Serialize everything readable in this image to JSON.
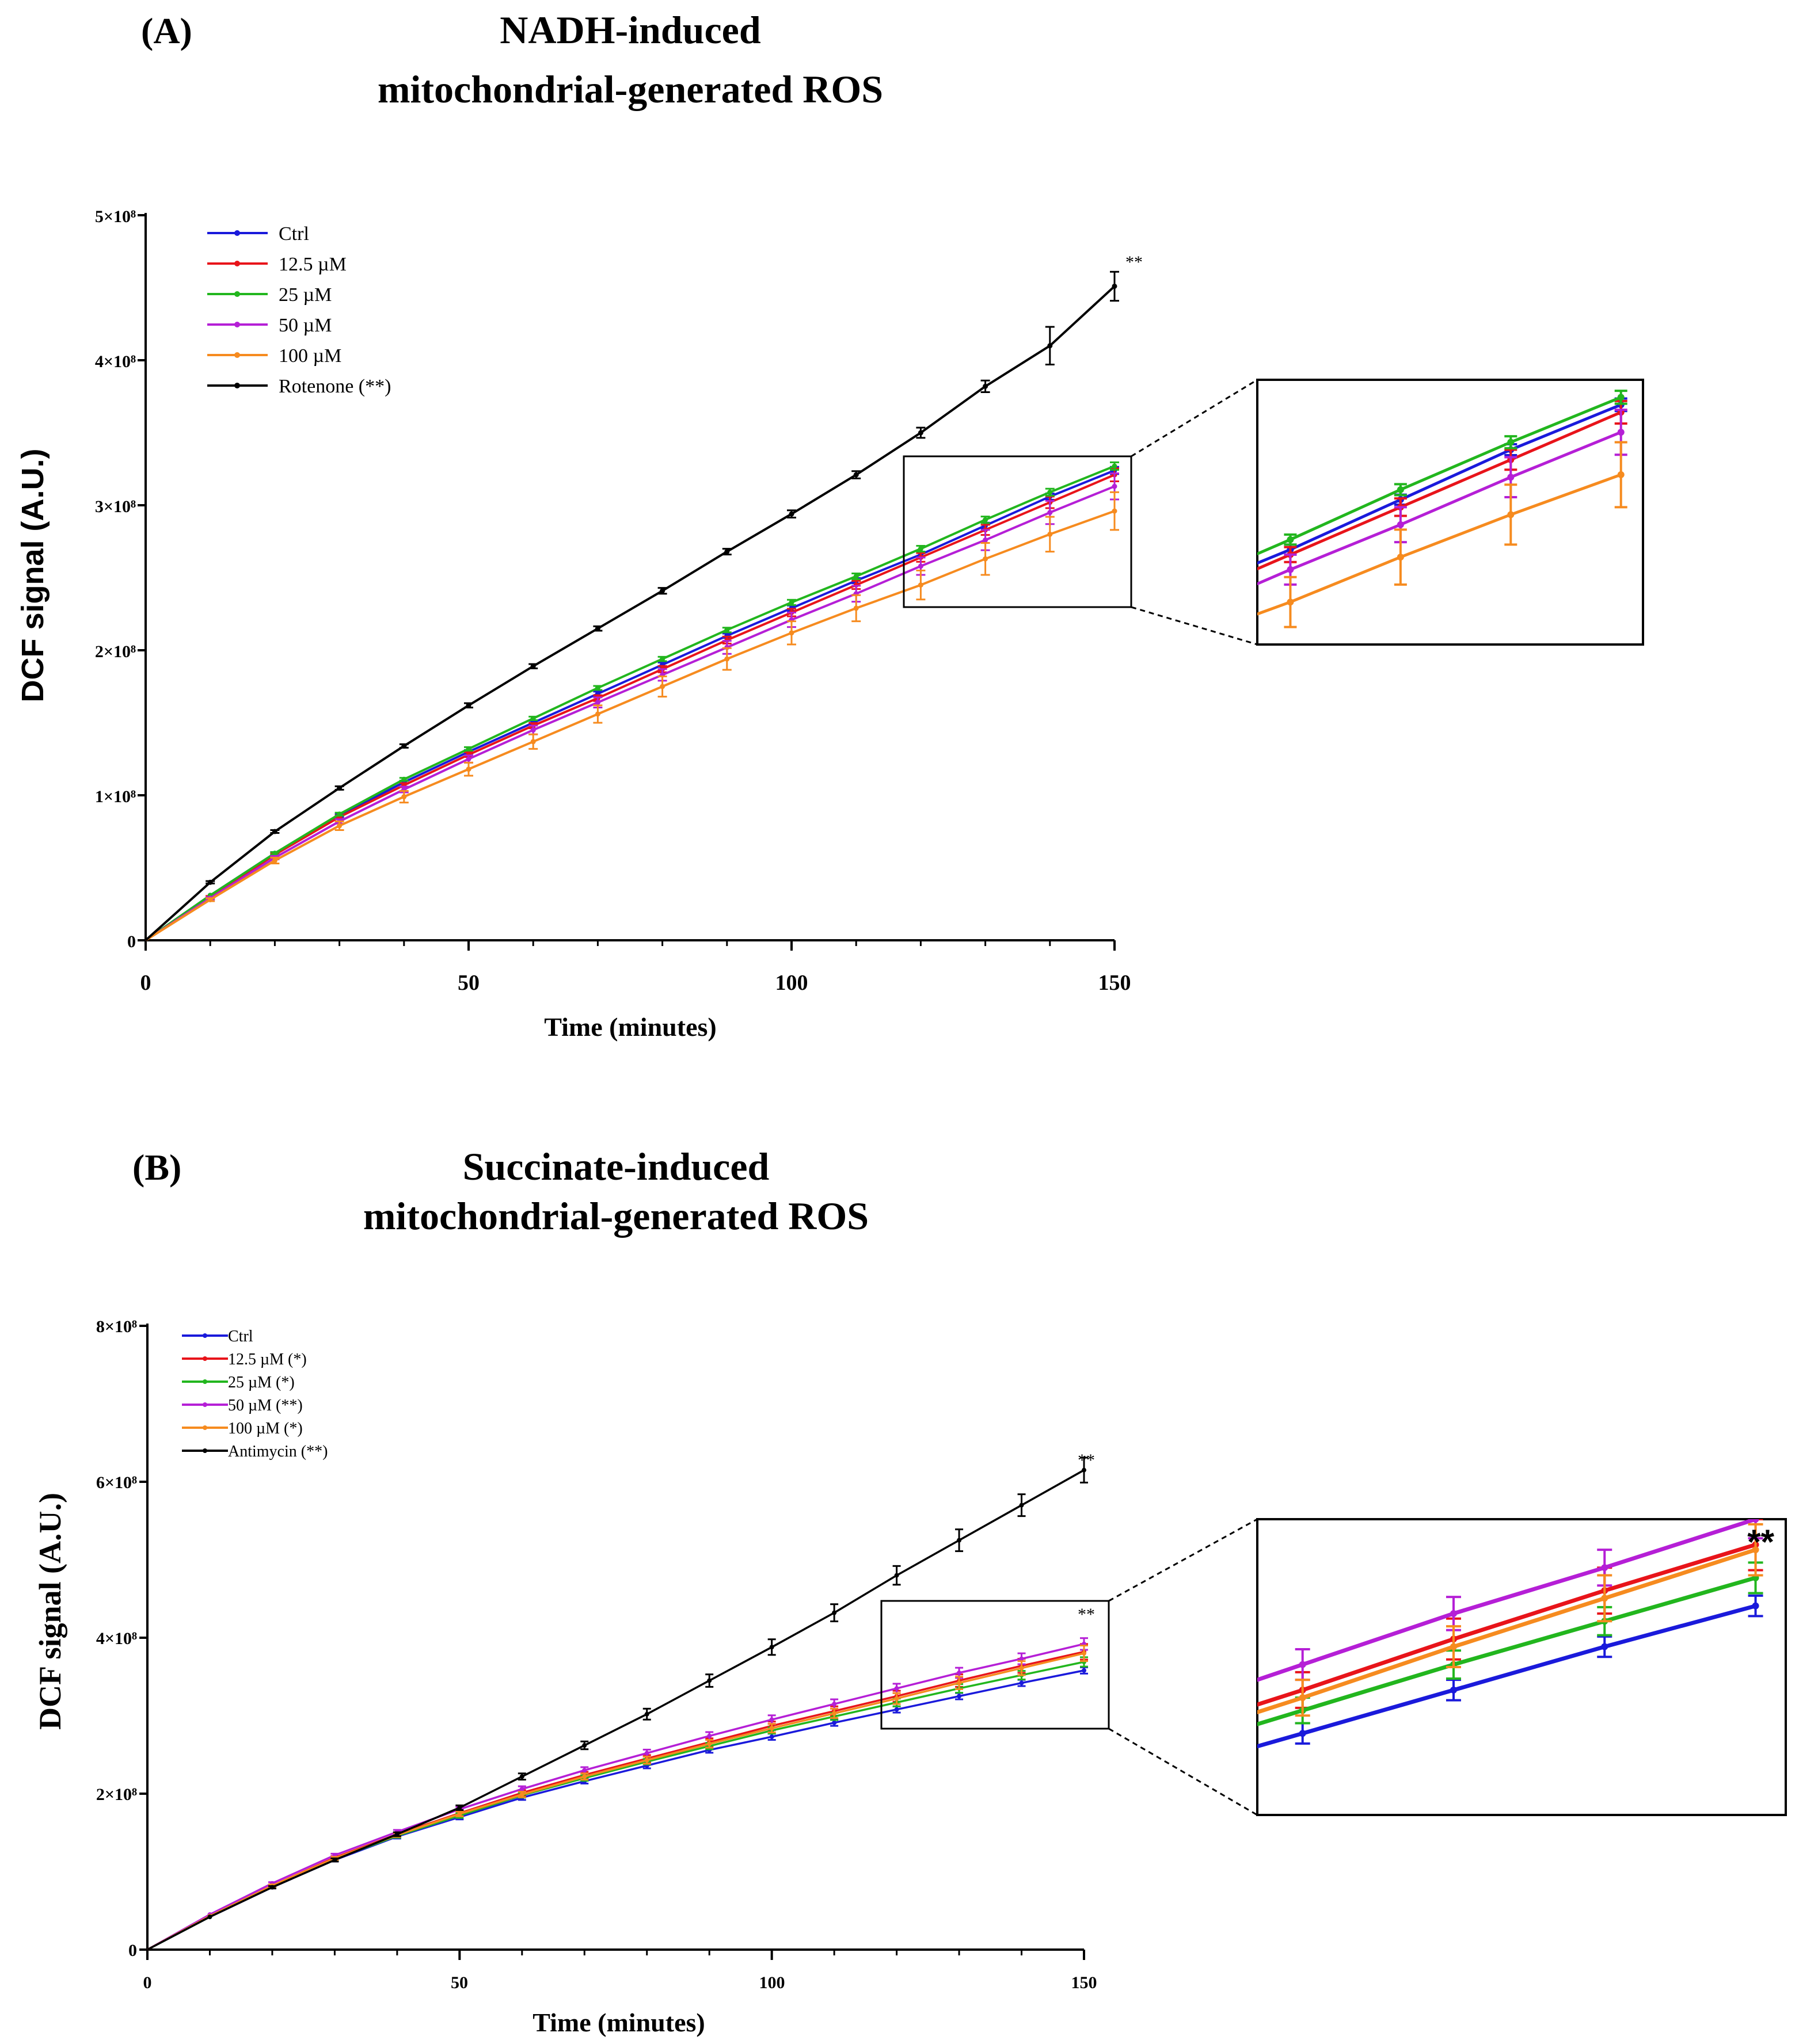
{
  "chart_data": [
    {
      "id": "A",
      "type": "line",
      "panel_label": "(A)",
      "title_lines": [
        "NADH-induced",
        "mitochondrial-generated ROS"
      ],
      "xlabel": "Time (minutes)",
      "ylabel": "DCF signal (A.U.)",
      "xlim": [
        0,
        150
      ],
      "ylim": [
        0,
        500000000
      ],
      "x_ticks": [
        0,
        50,
        100,
        150
      ],
      "x_tick_labels": [
        "0",
        "50",
        "100",
        "150"
      ],
      "y_ticks": [
        0,
        100000000,
        200000000,
        300000000,
        400000000,
        500000000
      ],
      "y_tick_labels": [
        "0",
        "1×10⁸",
        "2×10⁸",
        "3×10⁸",
        "4×10⁸",
        "5×10⁸"
      ],
      "x": [
        0,
        10,
        20,
        30,
        40,
        50,
        60,
        70,
        80,
        90,
        100,
        110,
        120,
        130,
        140,
        150
      ],
      "legend_position": "top-left",
      "significance_label": "**",
      "series": [
        {
          "name": "Ctrl",
          "color": "#1a1adb",
          "values": [
            0,
            31000000,
            60000000,
            86000000,
            109000000,
            130000000,
            150000000,
            170000000,
            190000000,
            210000000,
            229000000,
            248000000,
            266000000,
            286000000,
            306000000,
            324000000
          ],
          "errors": [
            0,
            500000,
            800000,
            1000000,
            1000000,
            1200000,
            1200000,
            1500000,
            1500000,
            1500000,
            1800000,
            1800000,
            2000000,
            2000000,
            2200000,
            2500000
          ]
        },
        {
          "name": "12.5 µM",
          "color": "#e8141a",
          "values": [
            0,
            30000000,
            59000000,
            85000000,
            107000000,
            128000000,
            148000000,
            167000000,
            187000000,
            207000000,
            226000000,
            245000000,
            264000000,
            283000000,
            302000000,
            321000000
          ],
          "errors": [
            0,
            600000,
            900000,
            1200000,
            1400000,
            1600000,
            1800000,
            2000000,
            2200000,
            2400000,
            2600000,
            2800000,
            3000000,
            3500000,
            4000000,
            4500000
          ]
        },
        {
          "name": "25 µM",
          "color": "#22b61e",
          "values": [
            0,
            31000000,
            60000000,
            87000000,
            111000000,
            132000000,
            153000000,
            174000000,
            194000000,
            214000000,
            233000000,
            251000000,
            270000000,
            290000000,
            309000000,
            327000000
          ],
          "errors": [
            0,
            500000,
            800000,
            1000000,
            1000000,
            1200000,
            1200000,
            1400000,
            1500000,
            1600000,
            1800000,
            2000000,
            2000000,
            2200000,
            2400000,
            2600000
          ]
        },
        {
          "name": "50 µM",
          "color": "#b51fd6",
          "values": [
            0,
            29000000,
            57000000,
            82000000,
            104000000,
            125000000,
            145000000,
            164000000,
            183000000,
            202000000,
            221000000,
            239000000,
            258000000,
            276000000,
            295000000,
            313000000
          ],
          "errors": [
            0,
            800000,
            1200000,
            1500000,
            2000000,
            2500000,
            3000000,
            3500000,
            4000000,
            4500000,
            5000000,
            5500000,
            6000000,
            7000000,
            8000000,
            9000000
          ]
        },
        {
          "name": "100 µM",
          "color": "#f68b1f",
          "values": [
            0,
            28000000,
            55000000,
            79000000,
            99000000,
            118000000,
            137000000,
            156000000,
            175000000,
            194000000,
            212000000,
            229000000,
            245000000,
            263000000,
            280000000,
            296000000
          ],
          "errors": [
            0,
            1000000,
            2000000,
            3000000,
            4000000,
            4500000,
            5000000,
            6000000,
            7000000,
            7500000,
            8000000,
            9000000,
            10000000,
            11000000,
            12000000,
            13000000
          ]
        },
        {
          "name": "Rotenone (**)",
          "color": "#000000",
          "values": [
            0,
            40000000,
            75000000,
            105000000,
            134000000,
            162000000,
            189000000,
            215000000,
            241000000,
            268000000,
            294000000,
            321000000,
            350000000,
            382000000,
            410000000,
            451000000
          ],
          "errors": [
            0,
            800000,
            1000000,
            1200000,
            1200000,
            1500000,
            1500000,
            1500000,
            2000000,
            2000000,
            2500000,
            2500000,
            3500000,
            4000000,
            13000000,
            10000000
          ]
        }
      ],
      "inset": {
        "xlim": [
          117,
          152
        ],
        "ylim": [
          228000000,
          334000000
        ]
      }
    },
    {
      "id": "B",
      "type": "line",
      "panel_label": "(B)",
      "title_lines": [
        "Succinate-induced",
        "mitochondrial-generated ROS"
      ],
      "xlabel": "Time (minutes)",
      "ylabel": "DCF signal (A.U.)",
      "xlim": [
        0,
        150
      ],
      "ylim": [
        0,
        800000000
      ],
      "x_ticks": [
        0,
        50,
        100,
        150
      ],
      "x_tick_labels": [
        "0",
        "50",
        "100",
        "150"
      ],
      "y_ticks": [
        0,
        200000000,
        400000000,
        600000000,
        800000000
      ],
      "y_tick_labels": [
        "0",
        "2×10⁸",
        "4×10⁸",
        "6×10⁸",
        "8×10⁸"
      ],
      "x": [
        0,
        10,
        20,
        30,
        40,
        50,
        60,
        70,
        80,
        90,
        100,
        110,
        120,
        130,
        140,
        150
      ],
      "legend_position": "top-left",
      "significance_label": "**",
      "series": [
        {
          "name": "Ctrl",
          "color": "#1a1adb",
          "values": [
            0,
            42000000,
            80000000,
            115000000,
            145000000,
            170000000,
            195000000,
            216000000,
            236000000,
            256000000,
            273000000,
            291000000,
            308000000,
            325000000,
            342000000,
            358000000
          ],
          "errors": [
            0,
            1000000,
            1500000,
            2000000,
            2500000,
            3000000,
            3000000,
            3000000,
            3500000,
            3500000,
            4000000,
            4000000,
            4000000,
            4000000,
            4000000,
            4000000
          ]
        },
        {
          "name": "12.5 µM (*)",
          "color": "#e8141a",
          "values": [
            0,
            43000000,
            82000000,
            118000000,
            148000000,
            175000000,
            201000000,
            224000000,
            245000000,
            266000000,
            287000000,
            306000000,
            325000000,
            345000000,
            364000000,
            382000000
          ],
          "errors": [
            0,
            1000000,
            1500000,
            2000000,
            2500000,
            3000000,
            3500000,
            4000000,
            4500000,
            5000000,
            5500000,
            6000000,
            7000000,
            8000000,
            9000000,
            10000000
          ]
        },
        {
          "name": "25 µM (*)",
          "color": "#22b61e",
          "values": [
            0,
            42000000,
            81000000,
            116000000,
            146000000,
            172000000,
            198000000,
            220000000,
            241000000,
            261000000,
            281000000,
            299000000,
            317000000,
            335000000,
            352000000,
            369000000
          ],
          "errors": [
            0,
            1000000,
            1500000,
            2000000,
            2500000,
            3000000,
            3000000,
            3500000,
            3500000,
            4000000,
            4000000,
            4500000,
            5000000,
            5500000,
            5500000,
            6000000
          ]
        },
        {
          "name": "50 µM (**)",
          "color": "#b51fd6",
          "values": [
            0,
            45000000,
            85000000,
            121000000,
            151000000,
            180000000,
            206000000,
            230000000,
            252000000,
            274000000,
            295000000,
            315000000,
            335000000,
            355000000,
            373000000,
            392000000
          ],
          "errors": [
            0,
            1000000,
            1500000,
            2000000,
            2500000,
            3000000,
            3500000,
            4000000,
            4500000,
            5000000,
            5500000,
            6000000,
            6000000,
            6500000,
            7000000,
            7500000
          ]
        },
        {
          "name": "100 µM (*)",
          "color": "#f68b1f",
          "values": [
            0,
            43000000,
            82000000,
            117000000,
            147000000,
            174000000,
            199000000,
            222000000,
            243000000,
            264000000,
            284000000,
            303000000,
            322000000,
            342000000,
            361000000,
            380000000
          ],
          "errors": [
            0,
            1000000,
            1500000,
            2000000,
            2500000,
            3000000,
            3500000,
            4000000,
            4500000,
            5000000,
            5500000,
            6000000,
            7000000,
            8000000,
            9000000,
            10000000
          ]
        },
        {
          "name": "Antimycin (**)",
          "color": "#000000",
          "values": [
            0,
            42000000,
            80000000,
            115000000,
            148000000,
            182000000,
            222000000,
            262000000,
            302000000,
            345000000,
            388000000,
            432000000,
            480000000,
            525000000,
            570000000,
            615000000
          ],
          "errors": [
            0,
            1000000,
            1500000,
            2000000,
            2500000,
            3000000,
            4000000,
            5000000,
            7000000,
            8000000,
            10000000,
            11000000,
            12000000,
            14000000,
            14000000,
            16000000
          ]
        }
      ],
      "inset": {
        "xlim": [
          117,
          152
        ],
        "ylim": [
          276000000,
          392000000
        ],
        "significance_label": "**"
      }
    }
  ]
}
